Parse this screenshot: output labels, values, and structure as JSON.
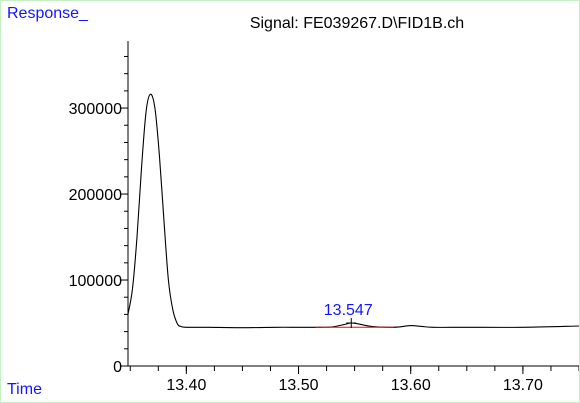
{
  "chart_data": {
    "type": "line",
    "title": "Signal: FE039267.D\\FID1B.ch",
    "ylabel": "Response_",
    "xlabel": "Time",
    "xlim": [
      13.348,
      13.75
    ],
    "ylim": [
      0,
      378000
    ],
    "xticks": [
      13.4,
      13.5,
      13.6,
      13.7
    ],
    "xtick_labels": [
      "13.40",
      "13.50",
      "13.60",
      "13.70"
    ],
    "yticks": [
      0,
      100000,
      200000,
      300000
    ],
    "ytick_labels": [
      "0",
      "100000",
      "200000",
      "300000"
    ],
    "series": [
      {
        "x": [
          13.348,
          13.352,
          13.356,
          13.36,
          13.364,
          13.368,
          13.372,
          13.376,
          13.38,
          13.384,
          13.388,
          13.392,
          13.395,
          13.4,
          13.42,
          13.45,
          13.48,
          13.5,
          13.52,
          13.53,
          13.54,
          13.547,
          13.555,
          13.565,
          13.58,
          13.59,
          13.6,
          13.61,
          13.62,
          13.65,
          13.7,
          13.75
        ],
        "y": [
          60000,
          90000,
          150000,
          230000,
          295000,
          316000,
          300000,
          245000,
          170000,
          100000,
          65000,
          49000,
          46000,
          45000,
          45000,
          44500,
          45000,
          45000,
          45000,
          45500,
          48000,
          50000,
          48500,
          46000,
          45000,
          45500,
          47000,
          46000,
          45000,
          45000,
          45000,
          46500
        ]
      }
    ],
    "peaks": [
      {
        "label": "13.547",
        "x": 13.547,
        "y": 50000
      }
    ],
    "baseline": {
      "x": [
        13.515,
        13.585
      ],
      "y": [
        45000,
        45000
      ]
    },
    "colors": {
      "trace": "#000000",
      "label": "#1414ff",
      "baseline": "#ff0000",
      "border": "#c4f0c4"
    },
    "grid": false
  }
}
